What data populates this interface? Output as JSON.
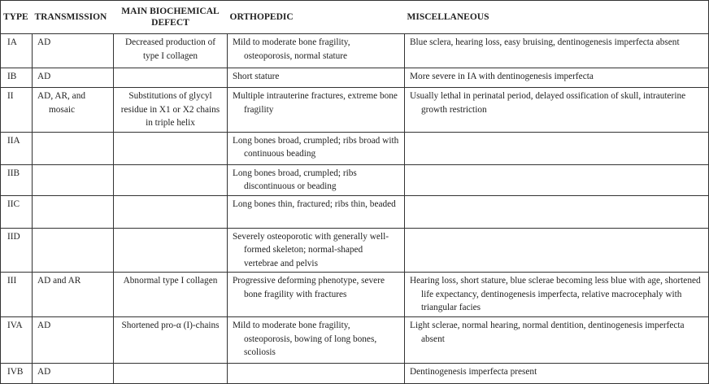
{
  "headers": {
    "type": "TYPE",
    "transmission": "TRANSMISSION",
    "biochemical": "MAIN BIOCHEMICAL DEFECT",
    "orthopedic": "ORTHOPEDIC",
    "miscellaneous": "MISCELLANEOUS"
  },
  "rows": [
    {
      "type": "IA",
      "transmission": "AD",
      "biochemical": "Decreased production of type I collagen",
      "orthopedic": "Mild to moderate bone fragility, osteoporosis, normal stature",
      "miscellaneous": "Blue sclera, hearing loss, easy bruising, dentinogenesis imperfecta absent"
    },
    {
      "type": "IB",
      "transmission": "AD",
      "biochemical": "",
      "orthopedic": "Short stature",
      "miscellaneous": "More severe in IA with dentinogenesis imperfecta"
    },
    {
      "type": "II",
      "transmission": "AD, AR, and mosaic",
      "biochemical": "Substitutions of glycyl residue in X1 or X2 chains in triple helix",
      "orthopedic": "Multiple intrauterine fractures, extreme bone fragility",
      "miscellaneous": "Usually lethal in perinatal period, delayed ossification of skull, intrauterine growth restriction"
    },
    {
      "type": "IIA",
      "transmission": "",
      "biochemical": "",
      "orthopedic": "Long bones broad, crumpled; ribs broad with continuous beading",
      "miscellaneous": ""
    },
    {
      "type": "IIB",
      "transmission": "",
      "biochemical": "",
      "orthopedic": "Long bones broad, crumpled; ribs discontinuous or beading",
      "miscellaneous": ""
    },
    {
      "type": "IIC",
      "transmission": "",
      "biochemical": "",
      "orthopedic": "Long bones thin, fractured; ribs thin, beaded",
      "miscellaneous": ""
    },
    {
      "type": "IID",
      "transmission": "",
      "biochemical": "",
      "orthopedic": "Severely osteoporotic with generally well-formed skeleton; normal-shaped vertebrae and pelvis",
      "miscellaneous": ""
    },
    {
      "type": "III",
      "transmission": "AD and AR",
      "biochemical": "Abnormal type I collagen",
      "orthopedic": "Progressive deforming phenotype, severe bone fragility with fractures",
      "miscellaneous": "Hearing loss, short stature, blue sclerae becoming less blue with age, shortened life expectancy, dentinogenesis imperfecta, relative macrocephaly with triangular facies"
    },
    {
      "type": "IVA",
      "transmission": "AD",
      "biochemical": "Shortened pro-α (I)-chains",
      "orthopedic": "Mild to moderate bone fragility, osteoporosis, bowing of long bones, scoliosis",
      "miscellaneous": "Light sclerae, normal hearing, normal dentition, dentinogenesis imperfecta absent"
    },
    {
      "type": "IVB",
      "transmission": "AD",
      "biochemical": "",
      "orthopedic": "",
      "miscellaneous": "Dentinogenesis imperfecta present"
    }
  ]
}
